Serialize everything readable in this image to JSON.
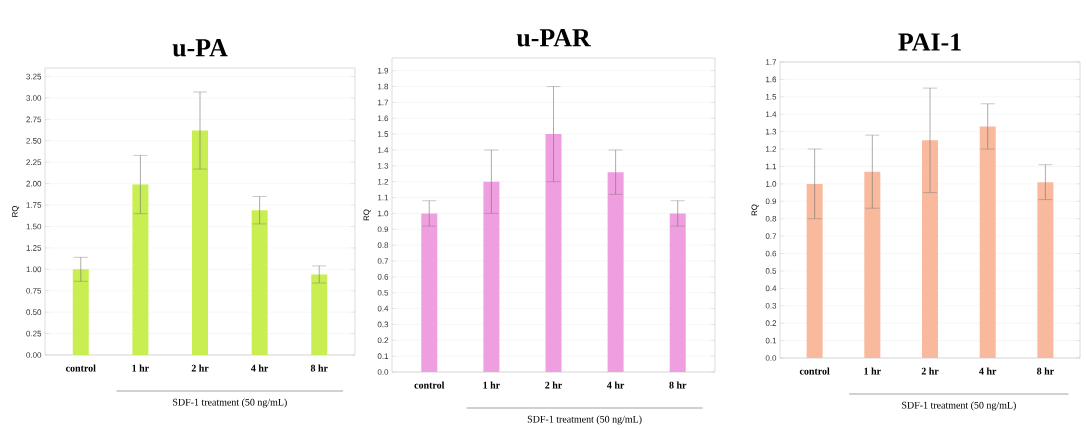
{
  "chart_data": [
    {
      "type": "bar",
      "title": "u-PA",
      "ylabel": "RQ",
      "xlabel": "SDF-1 treatment (50 ng/mL)",
      "categories": [
        "control",
        "1 hr",
        "2 hr",
        "4 hr",
        "8 hr"
      ],
      "values": [
        1.0,
        1.99,
        2.62,
        1.69,
        0.94
      ],
      "errors": [
        0.14,
        0.34,
        0.45,
        0.16,
        0.1
      ],
      "color": "#c8ee52",
      "ylim": [
        0,
        3.35
      ],
      "yticks": [
        {
          "value": 0,
          "label": "0.00"
        },
        {
          "value": 0.25,
          "label": "0.25"
        },
        {
          "value": 0.5,
          "label": "0.50"
        },
        {
          "value": 0.75,
          "label": "0.75"
        },
        {
          "value": 1,
          "label": "1.00"
        },
        {
          "value": 1.25,
          "label": "1.25"
        },
        {
          "value": 1.5,
          "label": "1.50"
        },
        {
          "value": 1.75,
          "label": "1.75"
        },
        {
          "value": 2,
          "label": "2.00"
        },
        {
          "value": 2.25,
          "label": "2.25"
        },
        {
          "value": 2.5,
          "label": "2.50"
        },
        {
          "value": 2.75,
          "label": "2.75"
        },
        {
          "value": 3,
          "label": "3.00"
        },
        {
          "value": 3.25,
          "label": "3.25"
        }
      ],
      "grid": "y"
    },
    {
      "type": "bar",
      "title": "u-PAR",
      "ylabel": "RQ",
      "xlabel": "SDF-1 treatment (50 ng/mL)",
      "categories": [
        "control",
        "1 hr",
        "2 hr",
        "4 hr",
        "8 hr"
      ],
      "values": [
        1.0,
        1.2,
        1.5,
        1.26,
        1.0
      ],
      "errors": [
        0.08,
        0.2,
        0.3,
        0.14,
        0.08
      ],
      "color": "#ef9fdf",
      "ylim": [
        0,
        1.98
      ],
      "yticks": [
        {
          "value": 0,
          "label": "0.0"
        },
        {
          "value": 0.1,
          "label": "0.1"
        },
        {
          "value": 0.2,
          "label": "0.2"
        },
        {
          "value": 0.3,
          "label": "0.3"
        },
        {
          "value": 0.4,
          "label": "0.4"
        },
        {
          "value": 0.5,
          "label": "0.5"
        },
        {
          "value": 0.6,
          "label": "0.6"
        },
        {
          "value": 0.7,
          "label": "0.7"
        },
        {
          "value": 0.8,
          "label": "0.8"
        },
        {
          "value": 0.9,
          "label": "0.9"
        },
        {
          "value": 1,
          "label": "1.0"
        },
        {
          "value": 1.1,
          "label": "1.1"
        },
        {
          "value": 1.2,
          "label": "1.2"
        },
        {
          "value": 1.3,
          "label": "1.3"
        },
        {
          "value": 1.4,
          "label": "1.4"
        },
        {
          "value": 1.5,
          "label": "1.5"
        },
        {
          "value": 1.6,
          "label": "1.6"
        },
        {
          "value": 1.7,
          "label": "1.7"
        },
        {
          "value": 1.8,
          "label": "1.8"
        },
        {
          "value": 1.9,
          "label": "1.9"
        }
      ],
      "grid": "y"
    },
    {
      "type": "bar",
      "title": "PAI-1",
      "ylabel": "RQ",
      "xlabel": "SDF-1 treatment (50 ng/mL)",
      "categories": [
        "control",
        "1 hr",
        "2 hr",
        "4 hr",
        "8 hr"
      ],
      "values": [
        1.0,
        1.07,
        1.25,
        1.33,
        1.01
      ],
      "errors": [
        0.2,
        0.21,
        0.3,
        0.13,
        0.1
      ],
      "color": "#f8b99c",
      "ylim": [
        0,
        1.7
      ],
      "yticks": [
        {
          "value": 0,
          "label": "0.0"
        },
        {
          "value": 0.1,
          "label": "0.1"
        },
        {
          "value": 0.2,
          "label": "0.2"
        },
        {
          "value": 0.3,
          "label": "0.3"
        },
        {
          "value": 0.4,
          "label": "0.4"
        },
        {
          "value": 0.5,
          "label": "0.5"
        },
        {
          "value": 0.6,
          "label": "0.6"
        },
        {
          "value": 0.7,
          "label": "0.7"
        },
        {
          "value": 0.8,
          "label": "0.8"
        },
        {
          "value": 0.9,
          "label": "0.9"
        },
        {
          "value": 1,
          "label": "1.0"
        },
        {
          "value": 1.1,
          "label": "1.1"
        },
        {
          "value": 1.2,
          "label": "1.2"
        },
        {
          "value": 1.3,
          "label": "1.3"
        },
        {
          "value": 1.4,
          "label": "1.4"
        },
        {
          "value": 1.5,
          "label": "1.5"
        },
        {
          "value": 1.6,
          "label": "1.6"
        },
        {
          "value": 1.7,
          "label": "1.7"
        }
      ],
      "grid": "y"
    }
  ]
}
